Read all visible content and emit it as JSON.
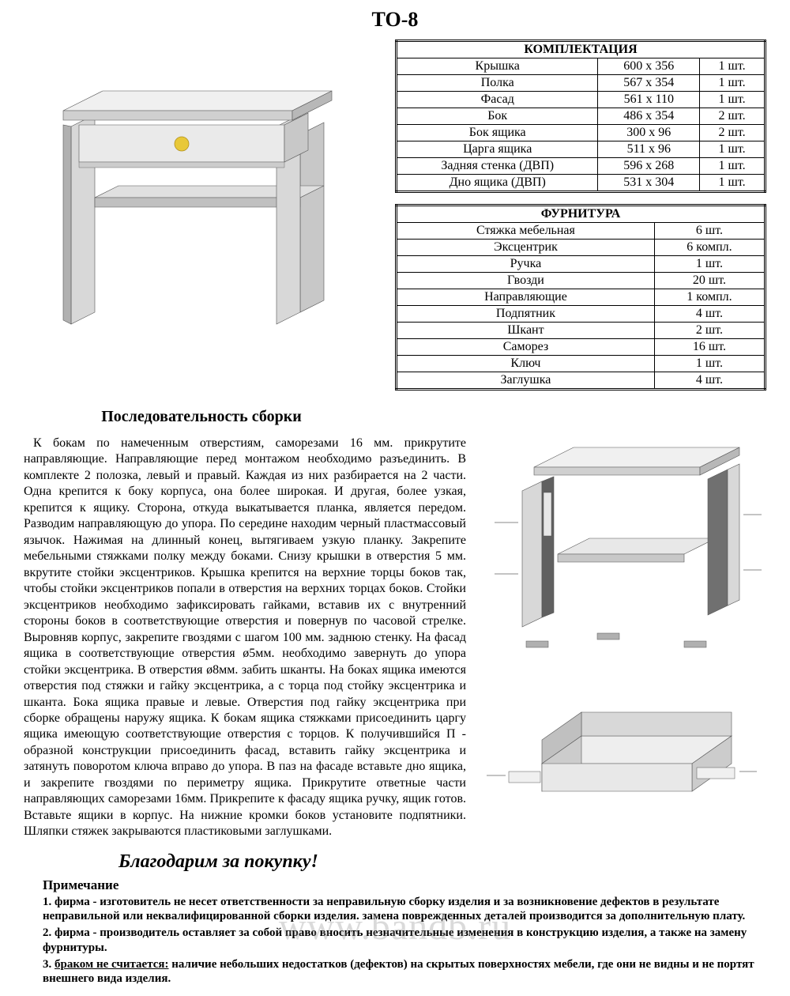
{
  "title": "ТО-8",
  "komplekt": {
    "header": "КОМПЛЕКТАЦИЯ",
    "rows": [
      {
        "name": "Крышка",
        "dim": "600 х 356",
        "qty": "1 шт."
      },
      {
        "name": "Полка",
        "dim": "567 х 354",
        "qty": "1 шт."
      },
      {
        "name": "Фасад",
        "dim": "561 х 110",
        "qty": "1 шт."
      },
      {
        "name": "Бок",
        "dim": "486 х 354",
        "qty": "2 шт."
      },
      {
        "name": "Бок ящика",
        "dim": "300 х 96",
        "qty": "2 шт."
      },
      {
        "name": "Царга ящика",
        "dim": "511 х 96",
        "qty": "1 шт."
      },
      {
        "name": "Задняя стенка (ДВП)",
        "dim": "596 х 268",
        "qty": "1 шт."
      },
      {
        "name": "Дно ящика (ДВП)",
        "dim": "531 х 304",
        "qty": "1 шт."
      }
    ]
  },
  "furnitura": {
    "header": "ФУРНИТУРА",
    "rows": [
      {
        "name": "Стяжка мебельная",
        "qty": "6 шт."
      },
      {
        "name": "Эксцентрик",
        "qty": "6 компл."
      },
      {
        "name": "Ручка",
        "qty": "1 шт."
      },
      {
        "name": "Гвозди",
        "qty": "20  шт."
      },
      {
        "name": "Направляющие",
        "qty": "1 компл."
      },
      {
        "name": "Подпятник",
        "qty": "4 шт."
      },
      {
        "name": "Шкант",
        "qty": "2 шт."
      },
      {
        "name": "Саморез",
        "qty": "16 шт."
      },
      {
        "name": "Ключ",
        "qty": "1 шт."
      },
      {
        "name": "Заглушка",
        "qty": "4 шт."
      }
    ]
  },
  "assembly_heading": "Последовательность сборки",
  "instructions": "К бокам по намеченным отверстиям, саморезами 16 мм. прикрутите направляющие. Направляющие перед монтажом необходимо разъединить. В комплекте 2 полозка, левый и правый. Каждая из них разбирается на 2 части. Одна крепится к боку корпуса, она более широкая. И другая, более узкая, крепится к ящику. Сторона, откуда выкатывается планка, является передом. Разводим направляющую до упора. По середине находим черный пластмассовый язычок. Нажимая на длинный конец, вытягиваем узкую планку. Закрепите мебельными стяжками полку между боками. Снизу крышки в отверстия 5 мм. вкрутите стойки эксцентриков. Крышка крепится на верхние торцы боков так, чтобы стойки эксцентриков попали в отверстия на верхних торцах боков.  Стойки эксцентриков необходимо зафиксировать гайками, вставив их с внутренний стороны боков в соответствующие отверстия и повернув по часовой стрелке. Выровняв корпус, закрепите гвоздями с шагом 100 мм. заднюю стенку. На фасад ящика в соответствующие отверстия ø5мм. необходимо завернуть до упора стойки эксцентрика. В отверстия ø8мм. забить шканты. На боках ящика  имеются отверстия под стяжки и гайку эксцентрика, а с торца под стойку эксцентрика и шканта. Бока ящика правые и левые. Отверстия под гайку эксцентрика при сборке обращены наружу ящика. К бокам ящика стяжками присоединить царгу ящика имеющую соответствующие отверстия с торцов. К получившийся П - образной конструкции присоединить фасад, вставить гайку эксцентрика и затянуть поворотом ключа вправо до упора. В паз на фасаде вставьте дно ящика, и закрепите гвоздями по периметру ящика. Прикрутите ответные части направляющих саморезами 16мм. Прикрепите к фасаду ящика ручку, ящик готов. Вставьте ящики в корпус. На нижние кромки боков установите подпятники. Шляпки стяжек закрываются пластиковыми заглушками.",
  "thanks": "Благодарим за покупку!",
  "note_heading": "Примечание",
  "notes": [
    "1.   фирма - изготовитель не несет ответственности за неправильную сборку изделия и за возникновение дефектов в результате неправильной или неквалифицированной сборки                                               изделия.       замена         поврежденных деталей производится за дополнительную плату.",
    "2.   фирма - производитель оставляет за собой право вносить незначительные изменения в конструкцию изделия, а     также на замену фурнитуры.",
    "3.  ",
    " наличие небольших недостатков (дефектов) на скрытых поверхностях  мебели, где они не видны и не портят внешнего вида изделия."
  ],
  "note3_underlined": "браком не считается:",
  "watermark": "www.bandb.ru",
  "colors": {
    "panel_light": "#e8e8e8",
    "panel_mid": "#d0d0d0",
    "panel_dark": "#b8b8b8",
    "panel_darker": "#808080",
    "knob": "#e8c838",
    "stroke": "#555555"
  }
}
